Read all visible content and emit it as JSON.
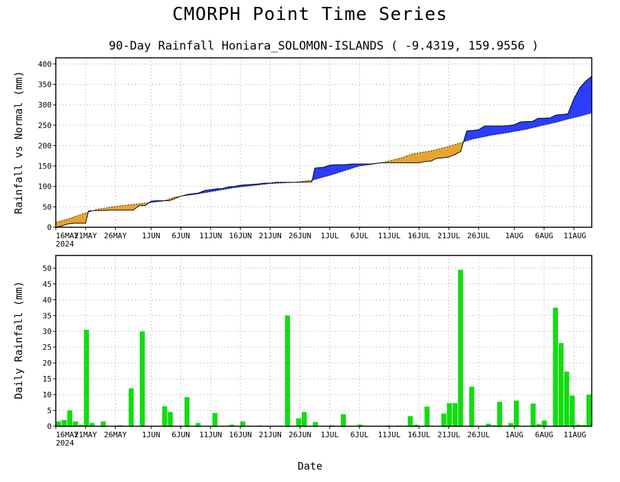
{
  "title": "CMORPH Point Time Series",
  "subtitle": "90-Day Rainfall  Honiara_SOLOMON-ISLANDS ( -9.4319, 159.9556 )",
  "xlabel": "Date",
  "colors": {
    "above": "#2a3cff",
    "below": "#e5a52e",
    "bars": "#11dd11"
  },
  "chart_data": [
    {
      "type": "area",
      "ylabel": "Rainfall vs Normal (mm)",
      "ylim": [
        0,
        415
      ],
      "yticks": [
        "0",
        "50",
        "100",
        "150",
        "200",
        "250",
        "300",
        "350",
        "400"
      ],
      "xlim": [
        0,
        90
      ],
      "xticks": [
        "16MAY",
        "21MAY",
        "26MAY",
        "1JUN",
        "6JUN",
        "11JUN",
        "16JUN",
        "21JUN",
        "26JUN",
        "1JUL",
        "6JUL",
        "11JUL",
        "16JUL",
        "21JUL",
        "26JUL",
        "1AUG",
        "6AUG",
        "11AUG"
      ],
      "year_label": "2024",
      "grid": true,
      "series": [
        {
          "name": "Observed",
          "values": [
            [
              0,
              0
            ],
            [
              1,
              3
            ],
            [
              2,
              8
            ],
            [
              3,
              10
            ],
            [
              4,
              10
            ],
            [
              5,
              10
            ],
            [
              5.5,
              40
            ],
            [
              7,
              41
            ],
            [
              8,
              41
            ],
            [
              9,
              42
            ],
            [
              10,
              42
            ],
            [
              11,
              42
            ],
            [
              12,
              42
            ],
            [
              13,
              42
            ],
            [
              14,
              53
            ],
            [
              15,
              53
            ],
            [
              16,
              64
            ],
            [
              17,
              65
            ],
            [
              18,
              65
            ],
            [
              19,
              65
            ],
            [
              20,
              70
            ],
            [
              21,
              76
            ],
            [
              22,
              80
            ],
            [
              23,
              82
            ],
            [
              24,
              84
            ],
            [
              25,
              90
            ],
            [
              26,
              92
            ],
            [
              27,
              94
            ],
            [
              28,
              95
            ],
            [
              29,
              99
            ],
            [
              30,
              100
            ],
            [
              31,
              103
            ],
            [
              32,
              104
            ],
            [
              33,
              105
            ],
            [
              34,
              106
            ],
            [
              35,
              108
            ],
            [
              36,
              108
            ],
            [
              37,
              110
            ],
            [
              38,
              110
            ],
            [
              39,
              110
            ],
            [
              40,
              110
            ],
            [
              41,
              110
            ],
            [
              42,
              111
            ],
            [
              43,
              111
            ],
            [
              43.5,
              145
            ],
            [
              45,
              147
            ],
            [
              46,
              152
            ],
            [
              47,
              153
            ],
            [
              48,
              153
            ],
            [
              49,
              154
            ],
            [
              50,
              155
            ],
            [
              51,
              155
            ],
            [
              52,
              155
            ],
            [
              53,
              155
            ],
            [
              54,
              157
            ],
            [
              55,
              158
            ],
            [
              56,
              158
            ],
            [
              57,
              158
            ],
            [
              58,
              158
            ],
            [
              59,
              158
            ],
            [
              60,
              158
            ],
            [
              61,
              158
            ],
            [
              62,
              161
            ],
            [
              63,
              162
            ],
            [
              64,
              169
            ],
            [
              65,
              170
            ],
            [
              66,
              172
            ],
            [
              67,
              178
            ],
            [
              68,
              186
            ],
            [
              69,
              236
            ],
            [
              70,
              237
            ],
            [
              71,
              239
            ],
            [
              72,
              248
            ],
            [
              73,
              248
            ],
            [
              74,
              248
            ],
            [
              75,
              248
            ],
            [
              76,
              249
            ],
            [
              77,
              251
            ],
            [
              78,
              258
            ],
            [
              79,
              259
            ],
            [
              80,
              259
            ],
            [
              81,
              267
            ],
            [
              82,
              267
            ],
            [
              83,
              268
            ],
            [
              84,
              275
            ],
            [
              85,
              276
            ],
            [
              86,
              278
            ],
            [
              87,
              315
            ],
            [
              88,
              342
            ],
            [
              89,
              358
            ],
            [
              90,
              370
            ]
          ]
        },
        {
          "name": "Normal",
          "values": [
            [
              0,
              12
            ],
            [
              2,
              20
            ],
            [
              4,
              30
            ],
            [
              5,
              35
            ],
            [
              7,
              44
            ],
            [
              10,
              51
            ],
            [
              15,
              59
            ],
            [
              18,
              64
            ],
            [
              20,
              74
            ],
            [
              24,
              82
            ],
            [
              28,
              92
            ],
            [
              30,
              97
            ],
            [
              33,
              102
            ],
            [
              36,
              107
            ],
            [
              40,
              110
            ],
            [
              43,
              115
            ],
            [
              46,
              127
            ],
            [
              49,
              141
            ],
            [
              51,
              150
            ],
            [
              53,
              154
            ],
            [
              55,
              159
            ],
            [
              58,
              170
            ],
            [
              60,
              180
            ],
            [
              63,
              187
            ],
            [
              66,
              198
            ],
            [
              68,
              207
            ],
            [
              70,
              216
            ],
            [
              73,
              225
            ],
            [
              76,
              232
            ],
            [
              79,
              240
            ],
            [
              81,
              247
            ],
            [
              84,
              257
            ],
            [
              86,
              265
            ],
            [
              88,
              272
            ],
            [
              90,
              280
            ]
          ]
        }
      ]
    },
    {
      "type": "bar",
      "ylabel": "Daily Rainfall (mm)",
      "ylim": [
        0,
        54
      ],
      "yticks": [
        "0",
        "5",
        "10",
        "15",
        "20",
        "25",
        "30",
        "35",
        "40",
        "45",
        "50"
      ],
      "xlim": [
        0,
        90
      ],
      "xticks": [
        "16MAY",
        "21MAY",
        "26MAY",
        "1JUN",
        "6JUN",
        "11JUN",
        "16JUN",
        "21JUN",
        "26JUN",
        "1JUL",
        "6JUL",
        "11JUL",
        "16JUL",
        "21JUL",
        "26JUL",
        "1AUG",
        "6AUG",
        "11AUG"
      ],
      "year_label": "2024",
      "grid": true,
      "values": [
        1.5,
        2,
        5,
        1.5,
        0.5,
        30.5,
        1,
        0,
        1.5,
        0,
        0,
        0.3,
        0,
        12,
        0,
        30,
        0,
        0,
        0,
        6.3,
        4.5,
        0,
        0,
        9.2,
        0,
        1,
        0,
        0,
        4.2,
        0,
        0,
        0.5,
        0,
        1.5,
        0,
        0,
        0.2,
        0,
        0,
        0,
        0,
        35,
        0,
        2.5,
        4.5,
        0,
        1.3,
        0,
        0,
        0.3,
        0,
        3.8,
        0,
        0,
        0.5,
        0,
        0,
        0,
        0,
        0.2,
        0,
        0.2,
        0,
        3.2,
        0.5,
        0,
        6.2,
        0,
        0,
        4,
        7.3,
        7.3,
        49.5,
        0,
        12.5,
        0,
        0,
        0.8,
        0.3,
        7.7,
        0,
        1,
        8.1,
        0,
        0,
        7.2,
        0.7,
        1.8,
        0,
        37.5,
        26.3,
        17.3,
        9.7,
        0.5,
        0.4,
        10
      ]
    }
  ]
}
